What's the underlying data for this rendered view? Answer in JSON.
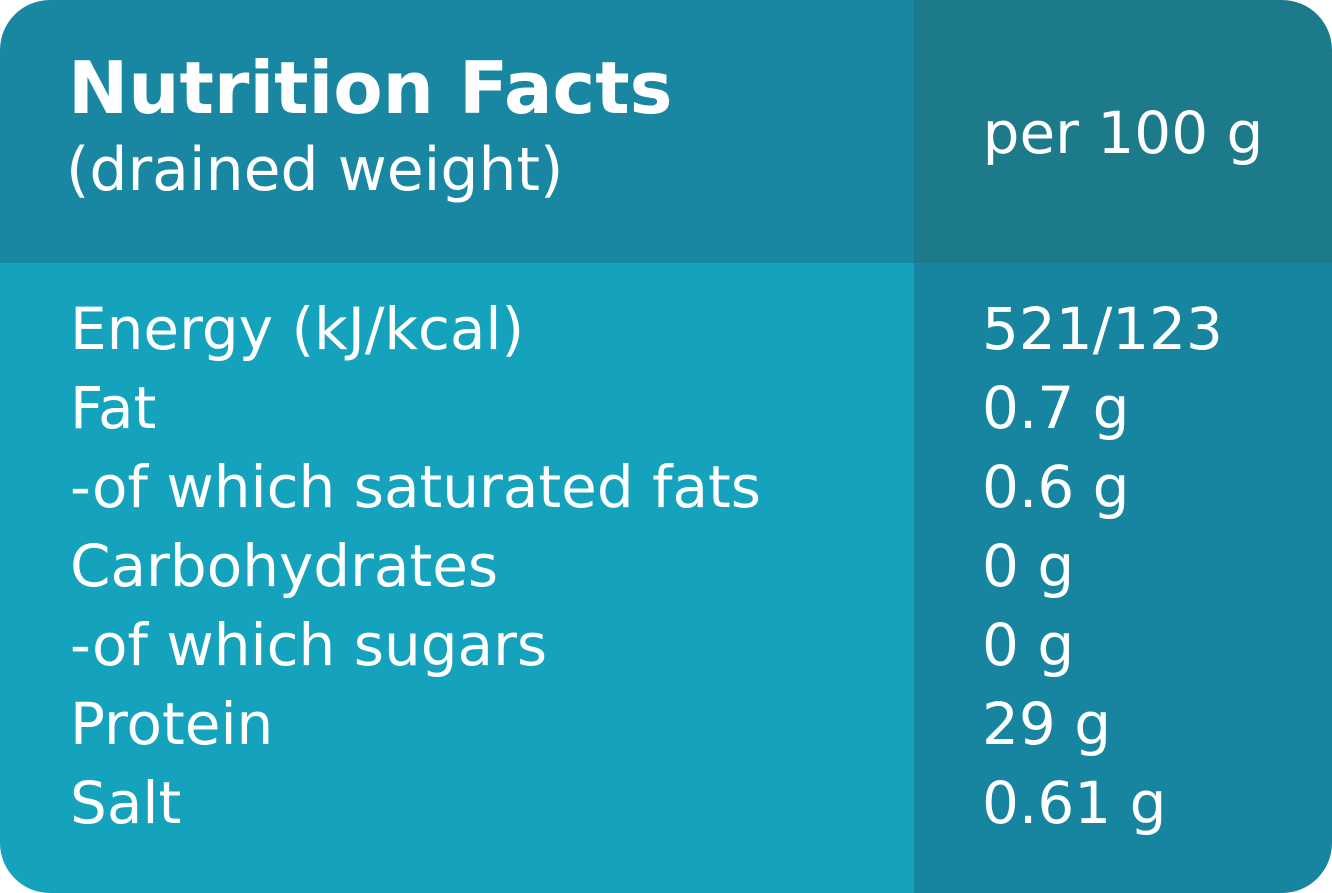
{
  "header": {
    "title": "Nutrition Facts",
    "subtitle": "(drained weight)",
    "column": "per 100 g"
  },
  "table": {
    "rows": [
      [
        "Energy (kJ/kcal)",
        "521/123"
      ],
      [
        "Fat",
        "0.7 g"
      ],
      [
        "-of which saturated fats",
        "0.6 g"
      ],
      [
        "Carbohydrates",
        "0 g"
      ],
      [
        "-of which sugars",
        "0 g"
      ],
      [
        "Protein",
        "29 g"
      ],
      [
        "Salt",
        "0.61 g"
      ]
    ]
  }
}
